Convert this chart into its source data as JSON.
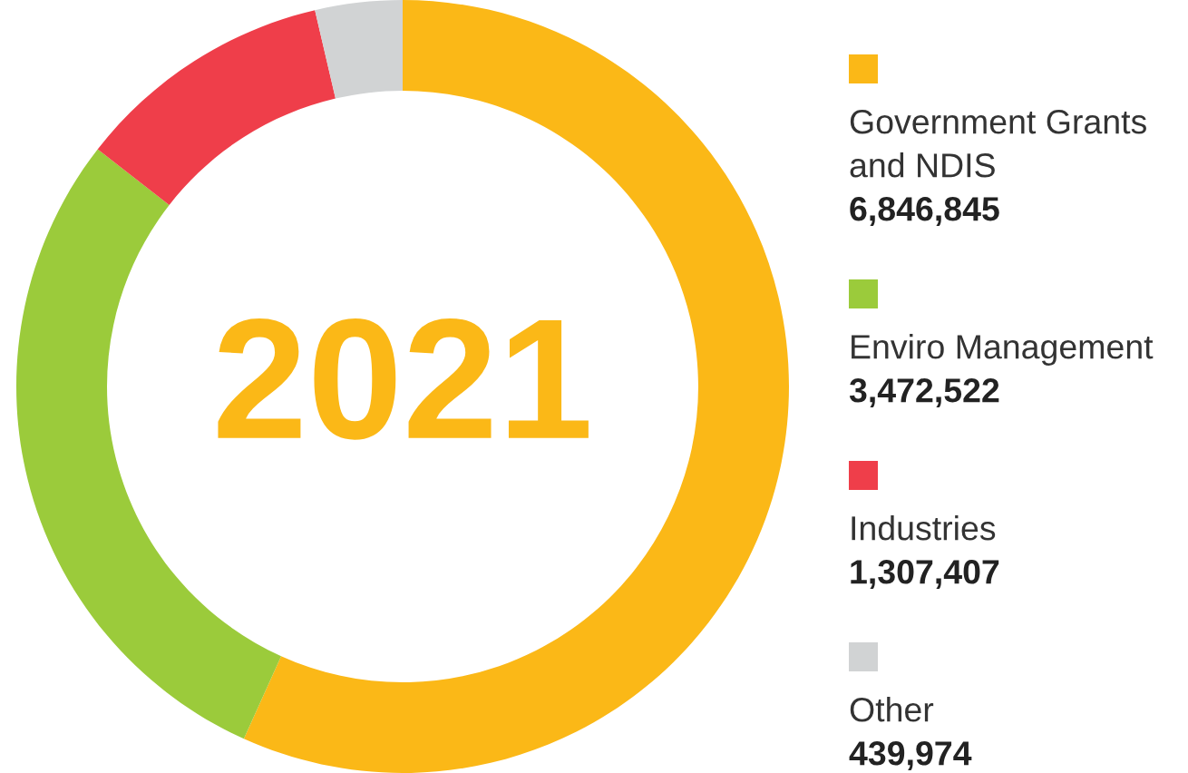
{
  "chart_data": {
    "type": "donut",
    "title": "2021",
    "categories": [
      "Government Grants and NDIS",
      "Enviro Management",
      "Industries",
      "Other"
    ],
    "values": [
      6846845,
      3472522,
      1307407,
      439974
    ],
    "value_labels": [
      "6,846,845",
      "3,472,522",
      "1,307,407",
      "439,974"
    ],
    "colors": [
      "#fbb817",
      "#9bcb3b",
      "#ef3e4a",
      "#d1d3d4"
    ],
    "legend": "right"
  }
}
